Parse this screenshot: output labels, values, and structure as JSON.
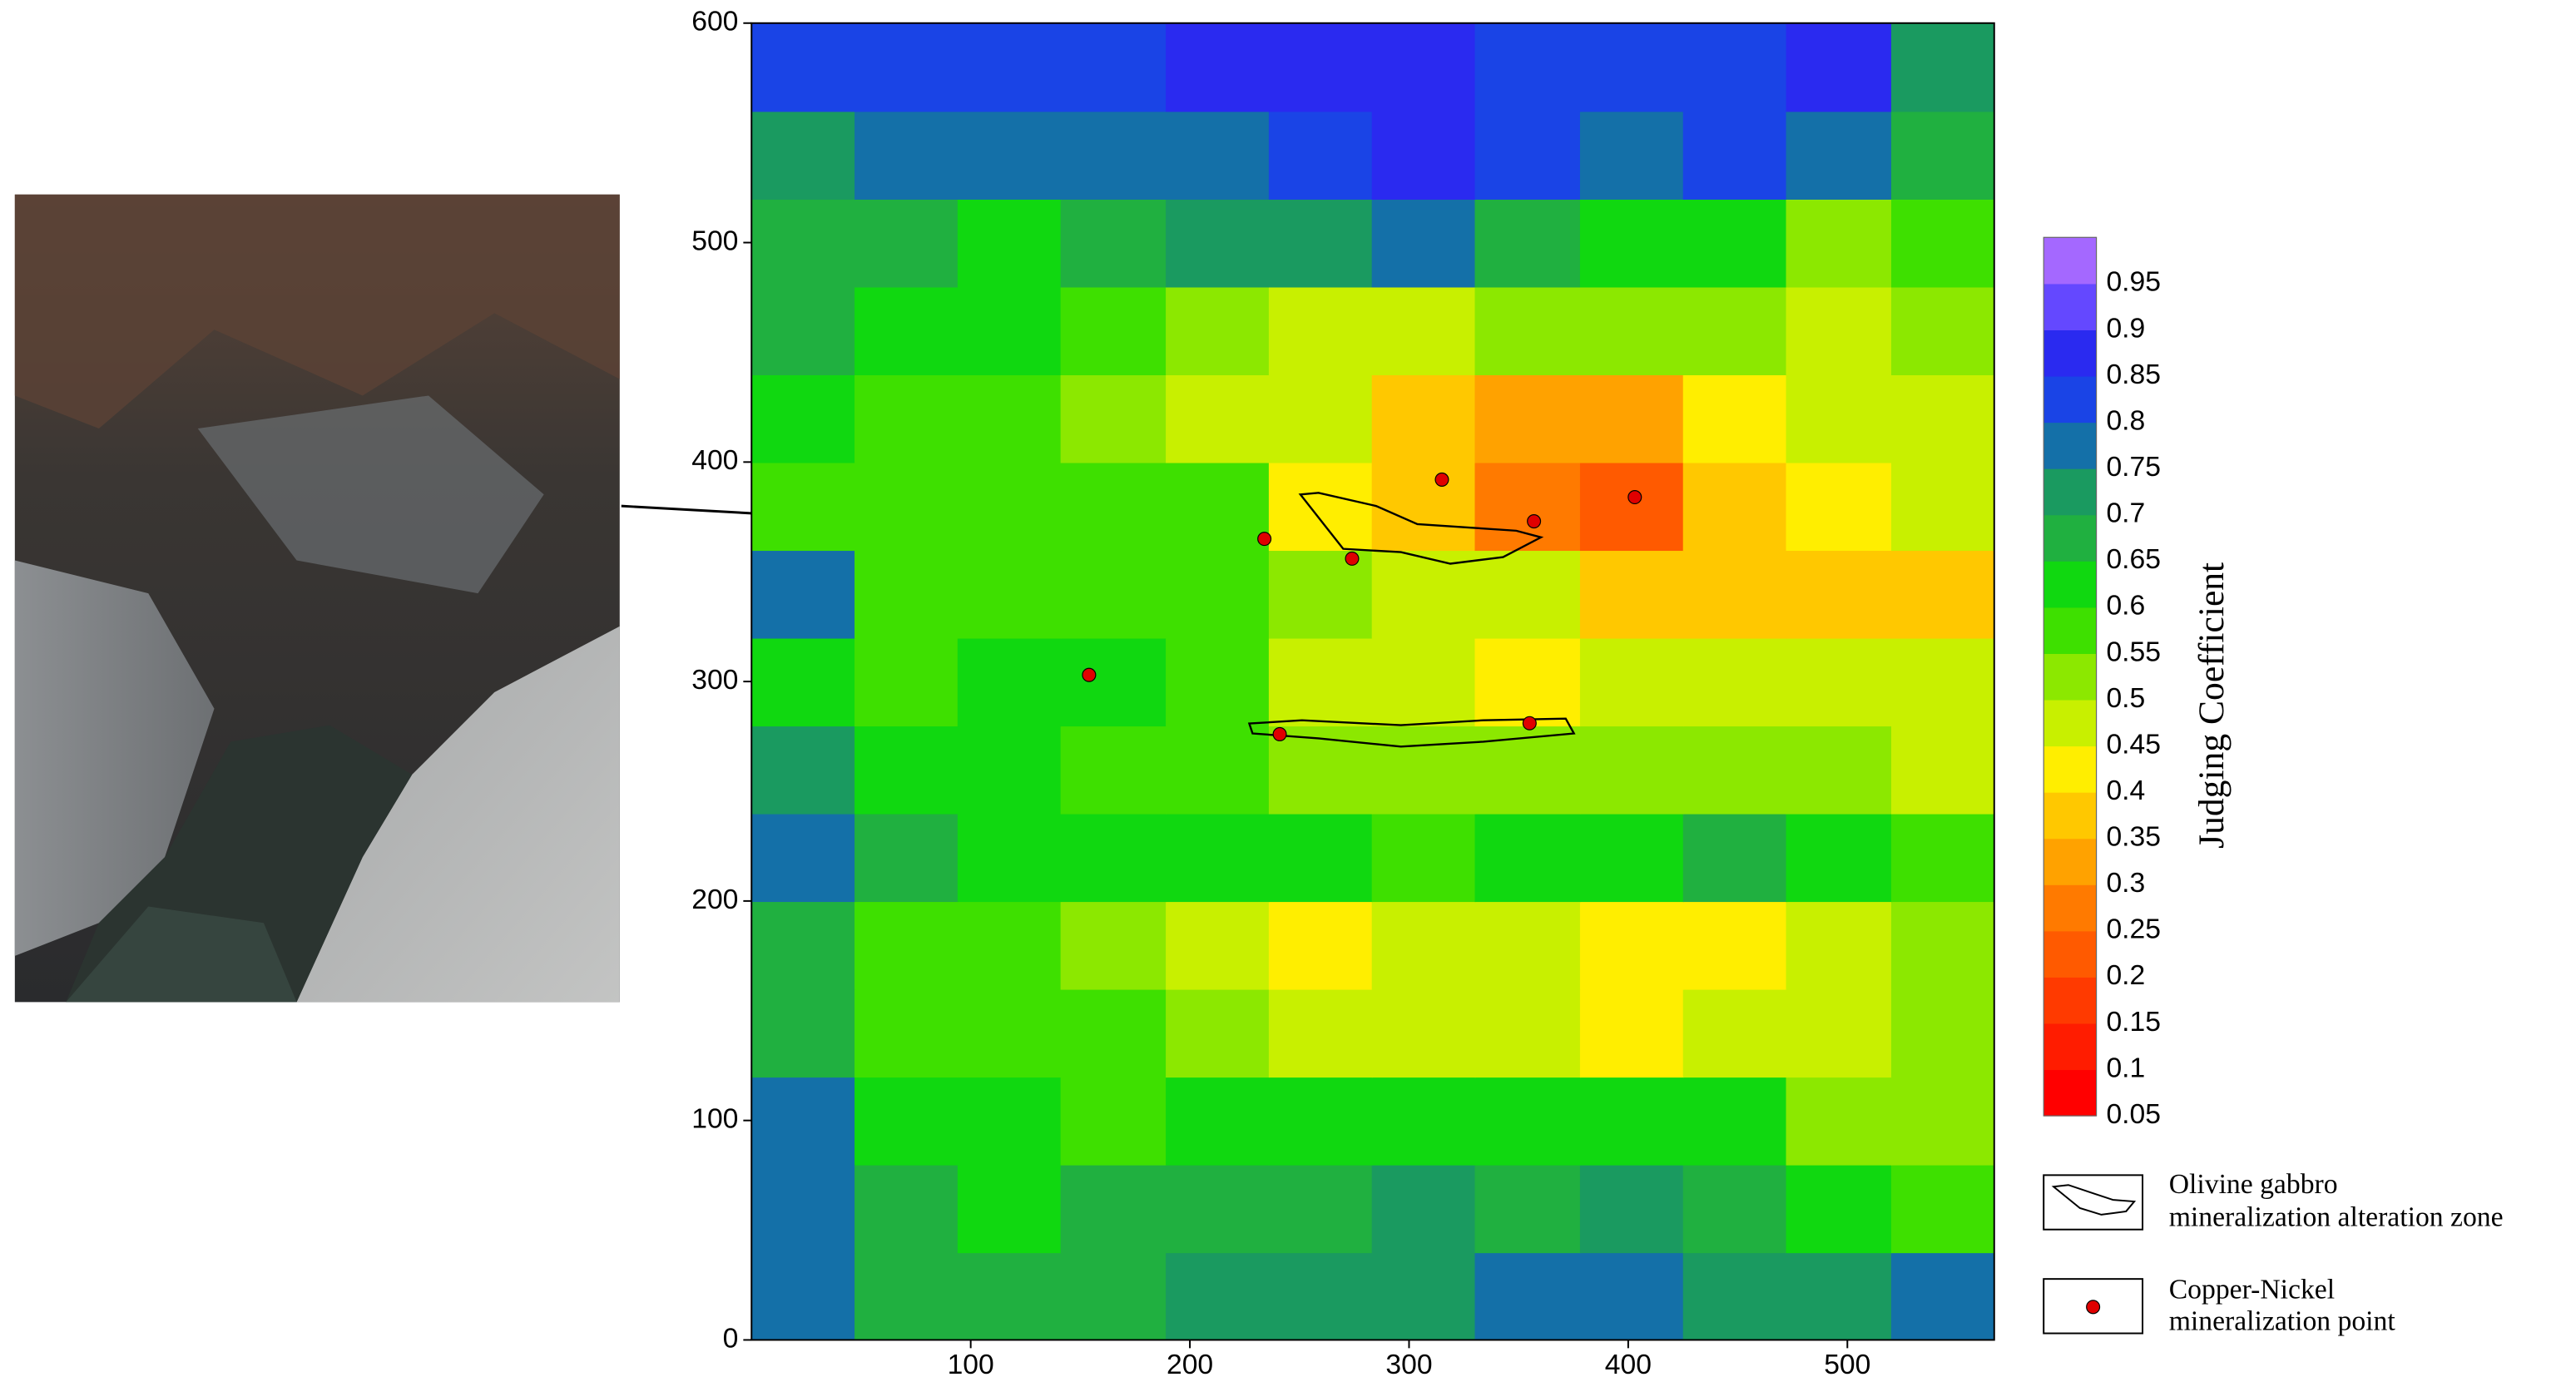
{
  "chart_data": {
    "type": "contour",
    "xlim": [
      0,
      567
    ],
    "ylim": [
      0,
      600
    ],
    "xticks": [
      100,
      200,
      300,
      400,
      500
    ],
    "yticks": [
      0,
      100,
      200,
      300,
      400,
      500,
      600
    ],
    "field": {
      "xbins": [
        0,
        47,
        94,
        141,
        189,
        236,
        283,
        330,
        378,
        425,
        472,
        520,
        567
      ],
      "ybins": [
        0,
        40,
        80,
        120,
        160,
        200,
        240,
        280,
        320,
        360,
        400,
        440,
        480,
        520,
        560,
        600
      ],
      "z": [
        [
          0.75,
          0.65,
          0.65,
          0.65,
          0.7,
          0.7,
          0.7,
          0.75,
          0.75,
          0.7,
          0.7,
          0.75
        ],
        [
          0.75,
          0.65,
          0.6,
          0.65,
          0.65,
          0.65,
          0.7,
          0.65,
          0.7,
          0.65,
          0.6,
          0.55
        ],
        [
          0.75,
          0.6,
          0.6,
          0.55,
          0.6,
          0.6,
          0.6,
          0.6,
          0.6,
          0.6,
          0.5,
          0.5
        ],
        [
          0.65,
          0.55,
          0.55,
          0.55,
          0.5,
          0.45,
          0.45,
          0.45,
          0.4,
          0.45,
          0.45,
          0.5
        ],
        [
          0.65,
          0.55,
          0.55,
          0.5,
          0.45,
          0.4,
          0.45,
          0.45,
          0.4,
          0.4,
          0.45,
          0.5
        ],
        [
          0.75,
          0.65,
          0.6,
          0.6,
          0.6,
          0.6,
          0.55,
          0.6,
          0.6,
          0.65,
          0.6,
          0.55
        ],
        [
          0.7,
          0.6,
          0.6,
          0.55,
          0.55,
          0.5,
          0.5,
          0.5,
          0.5,
          0.5,
          0.5,
          0.45
        ],
        [
          0.6,
          0.55,
          0.6,
          0.6,
          0.55,
          0.45,
          0.45,
          0.4,
          0.45,
          0.45,
          0.45,
          0.45
        ],
        [
          0.75,
          0.55,
          0.55,
          0.55,
          0.55,
          0.5,
          0.45,
          0.45,
          0.35,
          0.35,
          0.35,
          0.35
        ],
        [
          0.55,
          0.55,
          0.55,
          0.55,
          0.55,
          0.4,
          0.35,
          0.25,
          0.2,
          0.35,
          0.4,
          0.45
        ],
        [
          0.6,
          0.55,
          0.55,
          0.5,
          0.45,
          0.45,
          0.35,
          0.3,
          0.3,
          0.4,
          0.45,
          0.45
        ],
        [
          0.65,
          0.6,
          0.6,
          0.55,
          0.5,
          0.45,
          0.45,
          0.5,
          0.5,
          0.5,
          0.45,
          0.5
        ],
        [
          0.65,
          0.65,
          0.6,
          0.65,
          0.7,
          0.7,
          0.75,
          0.65,
          0.6,
          0.6,
          0.5,
          0.55
        ],
        [
          0.7,
          0.75,
          0.75,
          0.75,
          0.75,
          0.8,
          0.85,
          0.8,
          0.75,
          0.8,
          0.75,
          0.65
        ],
        [
          0.8,
          0.8,
          0.8,
          0.8,
          0.85,
          0.85,
          0.85,
          0.8,
          0.8,
          0.8,
          0.85,
          0.7
        ]
      ]
    },
    "colorbar": {
      "label": "Judging Coefficient",
      "lim": [
        0.05,
        1.0
      ],
      "ticks": [
        0.05,
        0.1,
        0.15,
        0.2,
        0.25,
        0.3,
        0.35,
        0.4,
        0.45,
        0.5,
        0.55,
        0.6,
        0.65,
        0.7,
        0.75,
        0.8,
        0.85,
        0.9,
        0.95
      ],
      "colors": [
        "#ff0000",
        "#ff1c00",
        "#ff3a00",
        "#ff5a00",
        "#ff7a00",
        "#ffa200",
        "#ffc800",
        "#ffee00",
        "#c8f000",
        "#8ce800",
        "#3ee000",
        "#10d810",
        "#20b040",
        "#1a9a60",
        "#1470a8",
        "#1a44e6",
        "#2a2af0",
        "#6448ff",
        "#a468ff"
      ]
    },
    "zones": {
      "name": [
        "Olivine gabbro",
        "mineralization alteration zone"
      ]
    },
    "points": {
      "name": [
        "Copper-Nickel",
        "mineralization point"
      ],
      "color": "#e00000",
      "x": [
        315,
        357,
        403,
        234,
        274,
        154,
        355,
        241
      ],
      "y": [
        392,
        373,
        384,
        365,
        356,
        303,
        281,
        276
      ]
    }
  }
}
